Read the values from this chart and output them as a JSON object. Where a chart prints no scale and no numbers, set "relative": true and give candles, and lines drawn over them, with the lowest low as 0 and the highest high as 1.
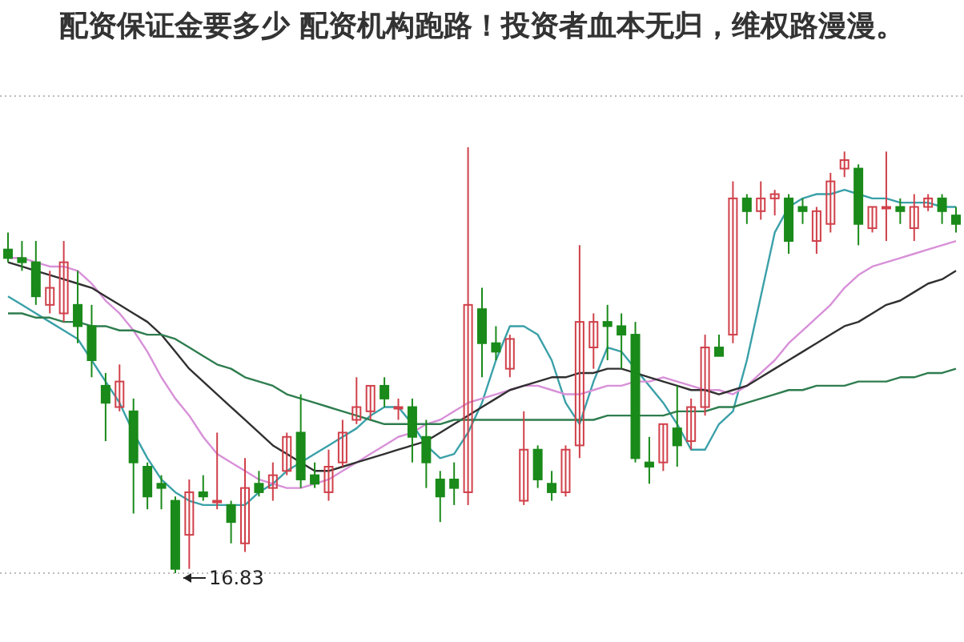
{
  "chart_data": {
    "type": "candlestick",
    "title": "配资保证金要多少 配资机构跑路！投资者血本无归，维权路漫漫。",
    "relative": true,
    "categories": [
      null,
      null,
      null,
      null,
      null,
      null,
      null,
      null,
      null,
      null,
      null,
      null,
      null,
      null,
      null,
      null,
      null,
      null,
      null,
      null,
      null,
      null,
      null,
      null,
      null,
      null,
      null,
      null,
      null,
      null,
      null,
      null,
      null,
      null,
      null,
      null,
      null,
      null,
      null,
      null,
      null,
      null,
      null,
      null,
      null,
      null,
      null,
      null,
      null,
      null,
      null,
      null,
      null,
      null,
      null,
      null,
      null,
      null,
      null,
      null,
      null,
      null,
      null,
      null,
      null,
      null,
      null,
      null,
      null
    ],
    "ohlc": [
      [
        0.76,
        0.8,
        0.73,
        0.74
      ],
      [
        0.74,
        0.78,
        0.71,
        0.73
      ],
      [
        0.73,
        0.78,
        0.63,
        0.65
      ],
      [
        0.63,
        0.71,
        0.61,
        0.67
      ],
      [
        0.61,
        0.78,
        0.59,
        0.73
      ],
      [
        0.63,
        0.71,
        0.54,
        0.58
      ],
      [
        0.58,
        0.63,
        0.46,
        0.5
      ],
      [
        0.44,
        0.47,
        0.31,
        0.4
      ],
      [
        0.39,
        0.49,
        0.38,
        0.45
      ],
      [
        0.38,
        0.41,
        0.14,
        0.26
      ],
      [
        0.25,
        0.26,
        0.15,
        0.18
      ],
      [
        0.21,
        0.23,
        0.15,
        0.2
      ],
      [
        0.17,
        0.18,
        0,
        0.01
      ],
      [
        0.09,
        0.22,
        0.01,
        0.19
      ],
      [
        0.19,
        0.23,
        0.17,
        0.18
      ],
      [
        0.17,
        0.33,
        0.15,
        0.17
      ],
      [
        0.16,
        0.17,
        0.07,
        0.12
      ],
      [
        0.07,
        0.27,
        0.05,
        0.2
      ],
      [
        0.21,
        0.24,
        0.18,
        0.19
      ],
      [
        0.2,
        0.26,
        0.17,
        0.23
      ],
      [
        0.24,
        0.33,
        0.23,
        0.32
      ],
      [
        0.33,
        0.42,
        0.2,
        0.22
      ],
      [
        0.23,
        0.26,
        0.2,
        0.21
      ],
      [
        0.19,
        0.29,
        0.17,
        0.25
      ],
      [
        0.26,
        0.36,
        0.25,
        0.33
      ],
      [
        0.36,
        0.46,
        0.35,
        0.39
      ],
      [
        0.38,
        0.44,
        0.36,
        0.44
      ],
      [
        0.44,
        0.46,
        0.39,
        0.41
      ],
      [
        0.39,
        0.41,
        0.36,
        0.39
      ],
      [
        0.39,
        0.41,
        0.26,
        0.32
      ],
      [
        0.32,
        0.36,
        0.2,
        0.26
      ],
      [
        0.22,
        0.24,
        0.12,
        0.18
      ],
      [
        0.22,
        0.26,
        0.16,
        0.2
      ],
      [
        0.19,
        1,
        0.16,
        0.63
      ],
      [
        0.62,
        0.67,
        0.46,
        0.54
      ],
      [
        0.54,
        0.58,
        0.5,
        0.52
      ],
      [
        0.48,
        0.56,
        0.46,
        0.55
      ],
      [
        0.17,
        0.38,
        0.16,
        0.29
      ],
      [
        0.29,
        0.3,
        0.2,
        0.22
      ],
      [
        0.21,
        0.24,
        0.17,
        0.19
      ],
      [
        0.19,
        0.3,
        0.18,
        0.29
      ],
      [
        0.3,
        0.77,
        0.27,
        0.59
      ],
      [
        0.53,
        0.61,
        0.48,
        0.59
      ],
      [
        0.59,
        0.63,
        0.5,
        0.58
      ],
      [
        0.58,
        0.61,
        0.48,
        0.56
      ],
      [
        0.56,
        0.59,
        0.26,
        0.27
      ],
      [
        0.26,
        0.32,
        0.21,
        0.25
      ],
      [
        0.26,
        0.35,
        0.24,
        0.35
      ],
      [
        0.34,
        0.44,
        0.25,
        0.3
      ],
      [
        0.31,
        0.41,
        0.29,
        0.39
      ],
      [
        0.39,
        0.56,
        0.37,
        0.53
      ],
      [
        0.53,
        0.56,
        0.51,
        0.51
      ],
      [
        0.56,
        0.92,
        0.54,
        0.88
      ],
      [
        0.88,
        0.89,
        0.82,
        0.85
      ],
      [
        0.85,
        0.92,
        0.83,
        0.88
      ],
      [
        0.88,
        0.9,
        0.84,
        0.89
      ],
      [
        0.88,
        0.89,
        0.75,
        0.78
      ],
      [
        0.86,
        0.88,
        0.82,
        0.85
      ],
      [
        0.78,
        0.86,
        0.75,
        0.85
      ],
      [
        0.82,
        0.94,
        0.8,
        0.92
      ],
      [
        0.95,
        0.99,
        0.93,
        0.97
      ],
      [
        0.95,
        0.96,
        0.77,
        0.82
      ],
      [
        0.81,
        0.86,
        0.8,
        0.86
      ],
      [
        0.86,
        0.99,
        0.78,
        0.86
      ],
      [
        0.86,
        0.88,
        0.82,
        0.85
      ],
      [
        0.81,
        0.89,
        0.78,
        0.86
      ],
      [
        0.86,
        0.89,
        0.85,
        0.88
      ],
      [
        0.88,
        0.89,
        0.82,
        0.85
      ],
      [
        0.84,
        0.86,
        0.8,
        0.82
      ]
    ],
    "series": [
      {
        "type": "line",
        "color": "#3aa0a8",
        "values": [
          0.65,
          0.63,
          0.61,
          0.59,
          0.57,
          0.55,
          0.5,
          0.45,
          0.4,
          0.33,
          0.27,
          0.22,
          0.19,
          0.17,
          0.16,
          0.16,
          0.16,
          0.16,
          0.19,
          0.21,
          0.24,
          0.26,
          0.28,
          0.3,
          0.32,
          0.34,
          0.37,
          0.39,
          0.39,
          0.35,
          0.3,
          0.27,
          0.28,
          0.33,
          0.4,
          0.5,
          0.58,
          0.58,
          0.56,
          0.5,
          0.4,
          0.35,
          0.45,
          0.53,
          0.52,
          0.48,
          0.44,
          0.4,
          0.35,
          0.29,
          0.29,
          0.35,
          0.38,
          0.5,
          0.65,
          0.8,
          0.86,
          0.88,
          0.89,
          0.89,
          0.9,
          0.89,
          0.88,
          0.88,
          0.87,
          0.87,
          0.87,
          0.86,
          0.86
        ]
      },
      {
        "type": "line",
        "color": "#d890d8",
        "values": [
          0.74,
          0.74,
          0.73,
          0.72,
          0.72,
          0.71,
          0.68,
          0.64,
          0.61,
          0.57,
          0.52,
          0.46,
          0.41,
          0.37,
          0.32,
          0.28,
          0.26,
          0.24,
          0.22,
          0.21,
          0.2,
          0.2,
          0.21,
          0.22,
          0.24,
          0.26,
          0.28,
          0.3,
          0.32,
          0.33,
          0.35,
          0.36,
          0.38,
          0.4,
          0.41,
          0.42,
          0.43,
          0.44,
          0.44,
          0.43,
          0.42,
          0.42,
          0.43,
          0.44,
          0.44,
          0.45,
          0.45,
          0.46,
          0.45,
          0.44,
          0.43,
          0.43,
          0.42,
          0.44,
          0.47,
          0.5,
          0.54,
          0.57,
          0.6,
          0.63,
          0.67,
          0.7,
          0.72,
          0.73,
          0.74,
          0.75,
          0.76,
          0.77,
          0.78
        ]
      },
      {
        "type": "line",
        "color": "#303030",
        "values": [
          0.73,
          0.72,
          0.71,
          0.7,
          0.69,
          0.68,
          0.67,
          0.65,
          0.63,
          0.61,
          0.59,
          0.56,
          0.52,
          0.48,
          0.45,
          0.42,
          0.39,
          0.36,
          0.33,
          0.3,
          0.28,
          0.26,
          0.24,
          0.24,
          0.25,
          0.26,
          0.27,
          0.28,
          0.29,
          0.3,
          0.31,
          0.33,
          0.35,
          0.37,
          0.39,
          0.41,
          0.43,
          0.44,
          0.45,
          0.46,
          0.46,
          0.47,
          0.47,
          0.48,
          0.48,
          0.47,
          0.46,
          0.45,
          0.44,
          0.43,
          0.43,
          0.42,
          0.43,
          0.44,
          0.46,
          0.48,
          0.5,
          0.52,
          0.54,
          0.56,
          0.58,
          0.59,
          0.61,
          0.63,
          0.64,
          0.66,
          0.68,
          0.69,
          0.71
        ]
      },
      {
        "type": "line",
        "color": "#2e7d4f",
        "values": [
          0.61,
          0.61,
          0.6,
          0.6,
          0.59,
          0.59,
          0.58,
          0.58,
          0.57,
          0.57,
          0.56,
          0.56,
          0.55,
          0.53,
          0.51,
          0.49,
          0.48,
          0.46,
          0.45,
          0.44,
          0.42,
          0.41,
          0.4,
          0.39,
          0.38,
          0.37,
          0.36,
          0.35,
          0.35,
          0.35,
          0.35,
          0.35,
          0.36,
          0.36,
          0.36,
          0.36,
          0.36,
          0.36,
          0.36,
          0.36,
          0.36,
          0.36,
          0.36,
          0.37,
          0.37,
          0.37,
          0.37,
          0.37,
          0.38,
          0.38,
          0.38,
          0.39,
          0.39,
          0.4,
          0.41,
          0.42,
          0.43,
          0.43,
          0.44,
          0.44,
          0.44,
          0.45,
          0.45,
          0.45,
          0.46,
          0.46,
          0.47,
          0.47,
          0.48
        ]
      }
    ],
    "annotations": [
      "16.83"
    ]
  }
}
